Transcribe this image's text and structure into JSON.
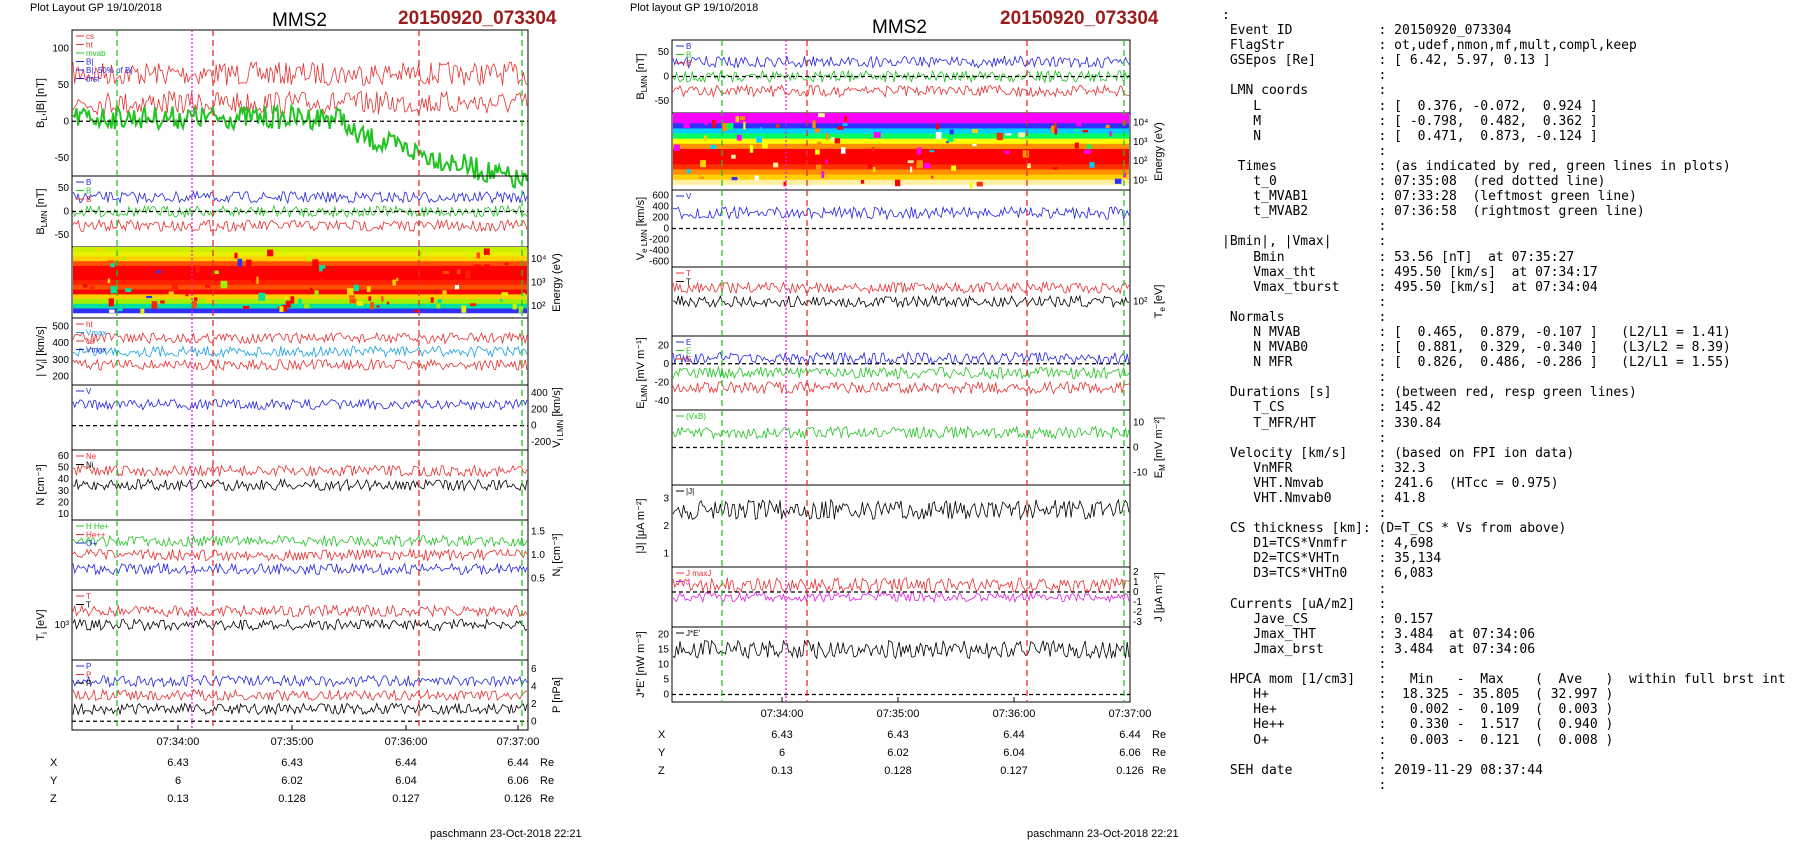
{
  "left_page": {
    "layout_label": "Plot Layout GP 19/10/2018",
    "probe": "MMS2",
    "event": "20150920_073304",
    "footer": "paschmann 23-Oct-2018 22:21",
    "time_ticks": [
      "07:34:00",
      "07:35:00",
      "07:36:00",
      "07:37:00"
    ],
    "position_rows": [
      {
        "label": "X",
        "values": [
          "6.43",
          "6.43",
          "6.44",
          "6.44"
        ],
        "unit": "Re"
      },
      {
        "label": "Y",
        "values": [
          "6",
          "6.02",
          "6.04",
          "6.06"
        ],
        "unit": "Re"
      },
      {
        "label": "Z",
        "values": [
          "0.13",
          "0.128",
          "0.127",
          "0.126"
        ],
        "unit": "Re"
      }
    ],
    "panels": [
      {
        "ylabel": "B",
        "sub": "L",
        "suffix": ",|B| [nT]",
        "side": "left",
        "ticks": [
          "100",
          "50",
          "0",
          "-50"
        ],
        "legend": [
          {
            "text": "cs",
            "color": "#e53030"
          },
          {
            "text": "ht",
            "color": "#e53030"
          },
          {
            "text": "mvab",
            "color": "#22c322"
          },
          {
            "text": "B|",
            "color": "#2424e0"
          },
          {
            "text": "B|, 50% of B|",
            "color": "#2424e0"
          },
          {
            "text": "brst",
            "color": "#2424e0"
          }
        ]
      },
      {
        "ylabel": "B",
        "sub": "LMN",
        "suffix": " [nT]",
        "side": "left",
        "ticks": [
          "50",
          "0",
          "-50"
        ],
        "legend": [
          {
            "text": "B",
            "color": "#2424e0"
          },
          {
            "text": "B",
            "color": "#22c322"
          },
          {
            "text": "B",
            "color": "#e53030"
          }
        ]
      },
      {
        "ylabel": "Energy (eV)",
        "side": "right",
        "ticks": [
          "10⁴",
          "10³",
          "10²"
        ],
        "legend": []
      },
      {
        "ylabel": "| V",
        "sub": "i",
        "suffix": "| [km/s]",
        "side": "left",
        "ticks": [
          "500",
          "400",
          "300",
          "200"
        ],
        "legend": [
          {
            "text": "ht",
            "color": "#e53030"
          },
          {
            "text": "Vmax",
            "color": "#1aa0e0"
          },
          {
            "text": "cs",
            "color": "#e53030"
          },
          {
            "text": "Vmax",
            "color": "#2424e0"
          }
        ]
      },
      {
        "ylabel": "V",
        "sub": "i LMN",
        "suffix": " [km/s]",
        "side": "right",
        "ticks": [
          "400",
          "200",
          "0",
          "-200"
        ],
        "legend": [
          {
            "text": "V",
            "color": "#2424e0"
          }
        ]
      },
      {
        "ylabel": "N [cm⁻³]",
        "side": "left",
        "ticks": [
          "60",
          "50",
          "40",
          "30",
          "20",
          "10"
        ],
        "legend": [
          {
            "text": "Ne",
            "color": "#e53030"
          },
          {
            "text": "Ni",
            "color": "#000000"
          }
        ]
      },
      {
        "ylabel": "N",
        "sub": "i",
        "suffix": " [cm⁻³]",
        "side": "right",
        "ticks": [
          "1.5",
          "1.0",
          "0.5"
        ],
        "legend": [
          {
            "text": "H He+",
            "color": "#22c322"
          },
          {
            "text": "He++",
            "color": "#e53030"
          },
          {
            "text": "O+",
            "color": "#2424e0"
          }
        ]
      },
      {
        "ylabel": "T",
        "sub": "i",
        "suffix": " [eV]",
        "side": "left",
        "ticks": [
          "10³"
        ],
        "legend": [
          {
            "text": "T",
            "color": "#e53030"
          },
          {
            "text": "T",
            "color": "#000000"
          }
        ]
      },
      {
        "ylabel": "P [nPa]",
        "side": "right",
        "ticks": [
          "6",
          "4",
          "2",
          "0"
        ],
        "legend": [
          {
            "text": "P",
            "color": "#2424e0"
          },
          {
            "text": "P",
            "color": "#e53030"
          },
          {
            "text": "P",
            "color": "#000000"
          }
        ]
      }
    ]
  },
  "middle_page": {
    "layout_label": "Plot layout GP 19/10/2018",
    "probe": "MMS2",
    "event": "20150920_073304",
    "footer": "paschmann 23-Oct-2018 22:21",
    "time_ticks": [
      "07:34:00",
      "07:35:00",
      "07:36:00",
      "07:37:00"
    ],
    "position_rows": [
      {
        "label": "X",
        "values": [
          "6.43",
          "6.43",
          "6.44",
          "6.44"
        ],
        "unit": "Re"
      },
      {
        "label": "Y",
        "values": [
          "6",
          "6.02",
          "6.04",
          "6.06"
        ],
        "unit": "Re"
      },
      {
        "label": "Z",
        "values": [
          "0.13",
          "0.128",
          "0.127",
          "0.126"
        ],
        "unit": "Re"
      }
    ],
    "panels": [
      {
        "ylabel": "B",
        "sub": "LMN",
        "suffix": " [nT]",
        "side": "left",
        "ticks": [
          "50",
          "0",
          "-50"
        ],
        "legend": [
          {
            "text": "B",
            "color": "#2424e0"
          },
          {
            "text": "B",
            "color": "#22c322"
          },
          {
            "text": "B",
            "color": "#e53030"
          }
        ]
      },
      {
        "ylabel": "Energy (eV)",
        "side": "right",
        "ticks": [
          "10⁴",
          "10³",
          "10²",
          "10¹"
        ],
        "legend": []
      },
      {
        "ylabel": "V",
        "sub": "e LMN",
        "suffix": " [km/s]",
        "side": "left",
        "ticks": [
          "600",
          "400",
          "200",
          "0",
          "-200",
          "-400",
          "-600"
        ],
        "legend": [
          {
            "text": "V",
            "color": "#2424e0"
          }
        ]
      },
      {
        "ylabel": "T",
        "sub": "e",
        "suffix": " [eV]",
        "side": "right",
        "ticks": [
          "10²"
        ],
        "legend": [
          {
            "text": "T",
            "color": "#e53030"
          },
          {
            "text": "T",
            "color": "#000000"
          }
        ]
      },
      {
        "ylabel": "E",
        "sub": "LMN",
        "suffix": " [mV m⁻¹]",
        "side": "left",
        "ticks": [
          "20",
          "0",
          "-20",
          "-40"
        ],
        "legend": [
          {
            "text": "E",
            "color": "#2424e0"
          },
          {
            "text": "E",
            "color": "#22c322"
          },
          {
            "text": "E",
            "color": "#e53030"
          }
        ]
      },
      {
        "ylabel": "E",
        "sub": "M",
        "suffix": " [mV m⁻²]",
        "side": "right",
        "ticks": [
          "10",
          "0",
          "-10"
        ],
        "legend": [
          {
            "text": "(VxB)",
            "color": "#22c322"
          }
        ]
      },
      {
        "ylabel": "|J| [μA m⁻²]",
        "side": "left",
        "ticks": [
          "3",
          "2",
          "1"
        ],
        "legend": [
          {
            "text": "|J|",
            "color": "#000000"
          }
        ]
      },
      {
        "ylabel": "J [μA m⁻²]",
        "side": "right",
        "ticks": [
          "2",
          "1",
          "0",
          "-1",
          "-2",
          "-3"
        ],
        "legend": [
          {
            "text": "J maxJ",
            "color": "#e53030"
          },
          {
            "text": "J",
            "color": "#e020e0"
          }
        ]
      },
      {
        "ylabel": "J*E' [nW m⁻³]",
        "side": "left",
        "ticks": [
          "20",
          "15",
          "10",
          "5",
          "0"
        ],
        "legend": [
          {
            "text": "J*E'",
            "color": "#000000"
          }
        ]
      }
    ]
  },
  "info_lines": [
    ":",
    " Event ID           : 20150920_073304",
    " FlagStr            : ot,udef,nmon,mf,mult,compl,keep",
    " GSEpos [Re]        : [ 6.42, 5.97, 0.13 ]",
    "                    :",
    " LMN coords         :",
    "    L               : [  0.376, -0.072,  0.924 ]",
    "    M               : [ -0.798,  0.482,  0.362 ]",
    "    N               : [  0.471,  0.873, -0.124 ]",
    "                    :",
    "  Times             : (as indicated by red, green lines in plots)",
    "    t_0             : 07:35:08  (red dotted line)",
    "    t_MVAB1         : 07:33:28  (leftmost green line)",
    "    t_MVAB2         : 07:36:58  (rightmost green line)",
    "                    :",
    "|Bmin|, |Vmax|      :",
    "    Bmin            : 53.56 [nT]  at 07:35:27",
    "    Vmax_tht        : 495.50 [km/s]  at 07:34:17",
    "    Vmax_tburst     : 495.50 [km/s]  at 07:34:04",
    "                    :",
    " Normals            :",
    "    N MVAB          : [  0.465,  0.879, -0.107 ]   (L2/L1 = 1.41)",
    "    N MVAB0         : [  0.881,  0.329, -0.340 ]   (L3/L2 = 8.39)",
    "    N MFR           : [  0.826,  0.486, -0.286 ]   (L2/L1 = 1.55)",
    "                    :",
    " Durations [s]      : (between red, resp green lines)",
    "    T_CS            : 145.42",
    "    T_MFR/HT        : 330.84",
    "                    :",
    " Velocity [km/s]    : (based on FPI ion data)",
    "    VnMFR           : 32.3",
    "    VHT.Nmvab       : 241.6  (HTcc = 0.975)",
    "    VHT.Nmvab0      : 41.8",
    "                    :",
    " CS thickness [km]: (D=T_CS * Vs from above)",
    "    D1=TCS*Vnmfr    : 4,698",
    "    D2=TCS*VHTn     : 35,134",
    "    D3=TCS*VHTn0    : 6,083",
    "                    :",
    " Currents [uA/m2]   :",
    "    Jave_CS         : 0.157",
    "    Jmax_THT        : 3.484  at 07:34:06",
    "    Jmax_brst       : 3.484  at 07:34:06",
    "                    :",
    " HPCA mom [1/cm3]   :   Min   -  Max    (  Ave   )  within full brst int",
    "    H+              :  18.325 - 35.805  ( 32.997 )",
    "    He+             :   0.002 -  0.109  (  0.003 )",
    "    He++            :   0.330 -  1.517  (  0.940 )",
    "    O+              :   0.003 -  0.121  (  0.008 )",
    "                    :",
    " SEH date           : 2019-11-29 08:37:44",
    "                    :"
  ],
  "colors": {
    "red": "#e53030",
    "green": "#22c322",
    "blue": "#2424e0",
    "black": "#000000",
    "event": "#9b1c1c"
  }
}
